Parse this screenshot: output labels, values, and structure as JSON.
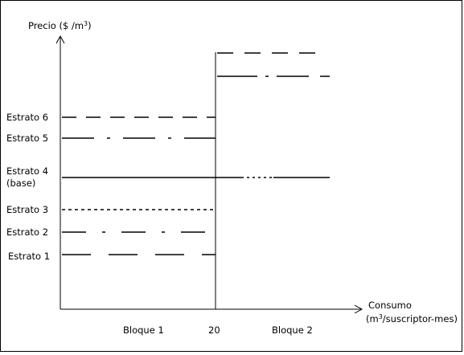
{
  "y_axis_label": {
    "before": "Precio ($ /m",
    "sup": "3",
    "after": ")"
  },
  "x_axis_label": {
    "line1": "Consumo",
    "line2_before": "(m",
    "line2_sup": "3",
    "line2_after": "/suscriptor-mes)"
  },
  "strata": [
    {
      "label": "Estrato 6"
    },
    {
      "label": "Estrato 5"
    },
    {
      "label": "Estrato 4",
      "note": "(base)"
    },
    {
      "label": "Estrato 3"
    },
    {
      "label": "Estrato 2"
    },
    {
      "label": "Estrato 1"
    }
  ],
  "blocks": [
    {
      "label": "Bloque 1"
    },
    {
      "label": "Bloque 2"
    }
  ],
  "threshold_label": "20"
}
